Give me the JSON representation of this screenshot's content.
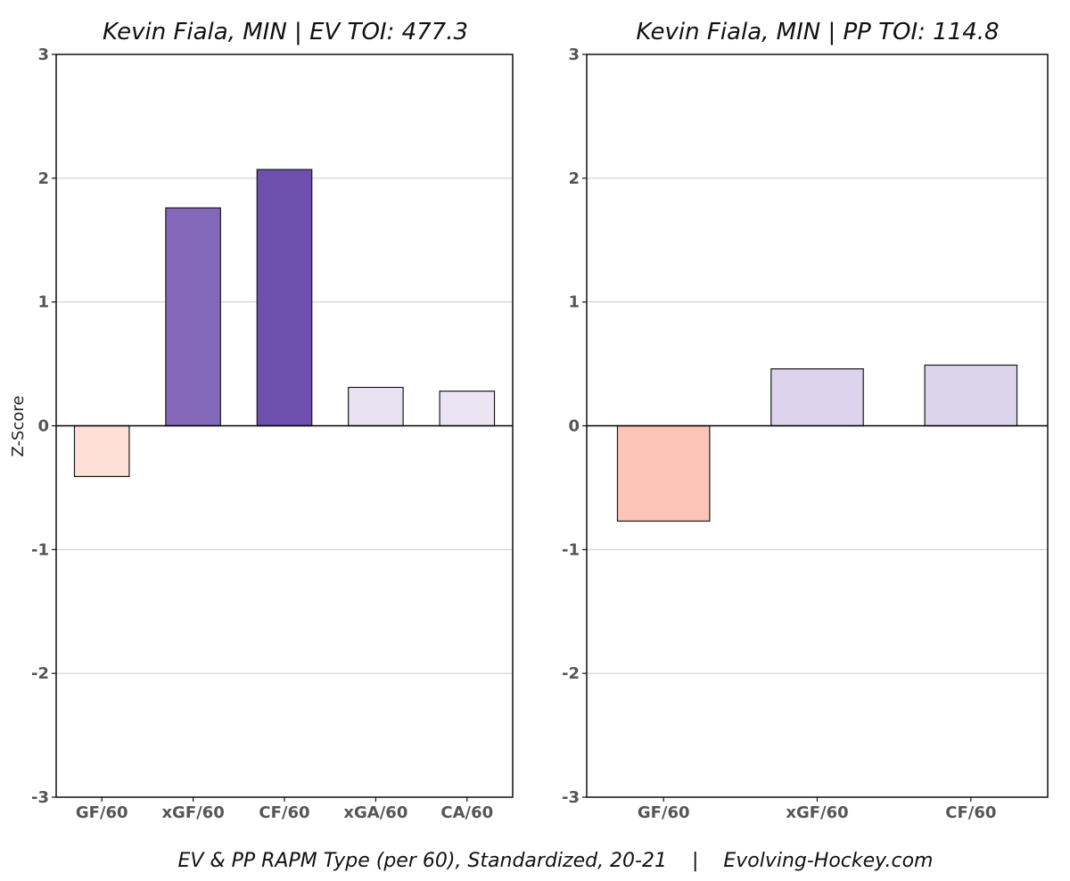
{
  "chart_data": [
    {
      "type": "bar",
      "title": "Kevin Fiala, MIN  |  EV TOI: 477.3",
      "ylabel": "Z-Score",
      "ylim": [
        -3,
        3
      ],
      "yticks": [
        3,
        2,
        1,
        0,
        -1,
        -2,
        -3
      ],
      "grid": true,
      "categories": [
        "GF/60",
        "xGF/60",
        "CF/60",
        "xGA/60",
        "CA/60"
      ],
      "values": [
        -0.41,
        1.76,
        2.07,
        0.31,
        0.28
      ],
      "colors": [
        "#fee0d8",
        "#8468ba",
        "#6d4fae",
        "#e8e2f3",
        "#ebe5f3"
      ]
    },
    {
      "type": "bar",
      "title": "Kevin Fiala, MIN  |  PP TOI: 114.8",
      "ylabel": "",
      "ylim": [
        -3,
        3
      ],
      "yticks": [
        3,
        2,
        1,
        0,
        -1,
        -2,
        -3
      ],
      "grid": true,
      "categories": [
        "GF/60",
        "xGF/60",
        "CF/60"
      ],
      "values": [
        -0.77,
        0.46,
        0.49
      ],
      "colors": [
        "#fdc5b8",
        "#ddd3ec",
        "#dcd4eb"
      ]
    }
  ],
  "caption": "EV & PP RAPM Type (per 60), Standardized, 20-21    |    Evolving-Hockey.com"
}
